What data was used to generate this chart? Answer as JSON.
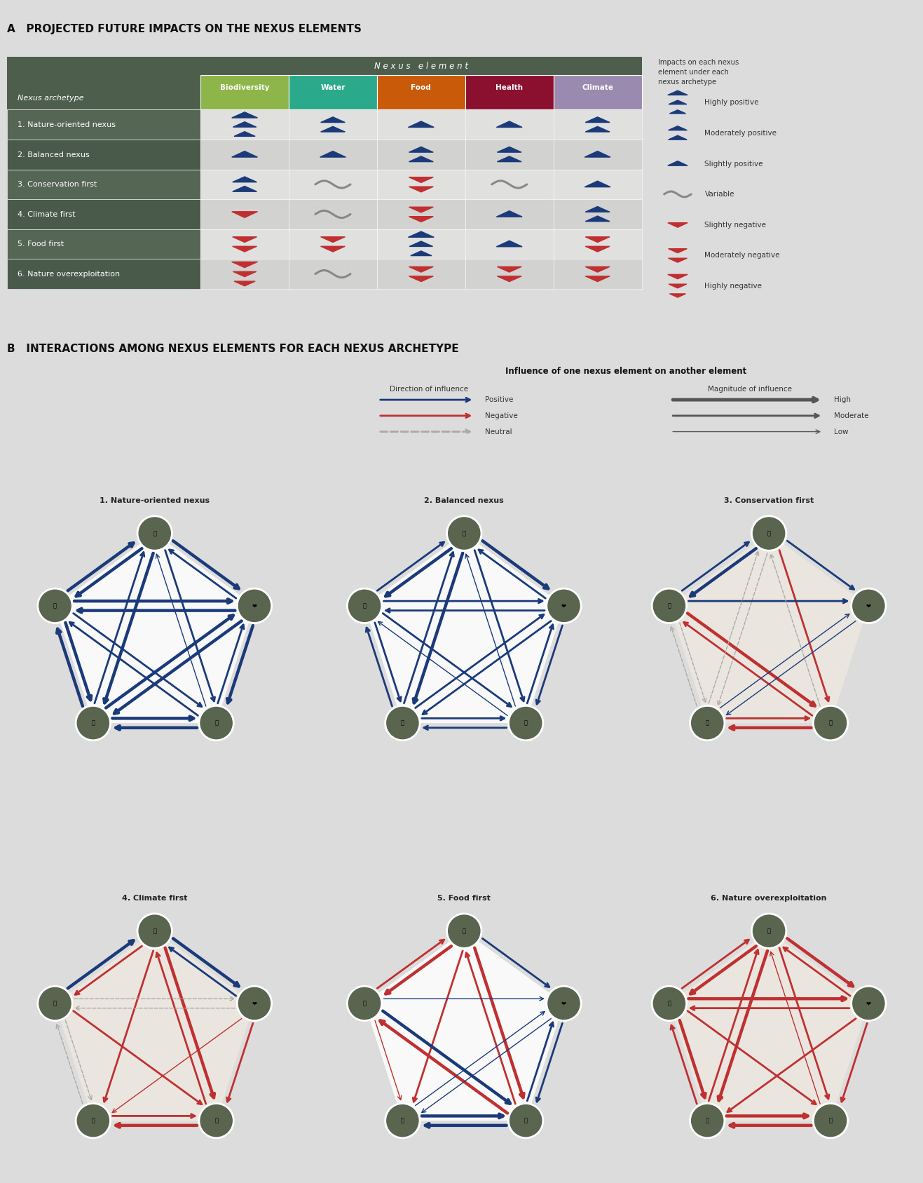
{
  "title_A": "A   PROJECTED FUTURE IMPACTS ON THE NEXUS ELEMENTS",
  "title_B": "B   INTERACTIONS AMONG NEXUS ELEMENTS FOR EACH NEXUS ARCHETYPE",
  "bg_color": "#dcdcdc",
  "header_dark": "#4d5e4d",
  "bio_color": "#8db54a",
  "water_color": "#2aaa8a",
  "food_color": "#c85a0a",
  "health_color": "#8b1030",
  "climate_color": "#9a8ab0",
  "archetypes": [
    "1. Nature-oriented nexus",
    "2. Balanced nexus",
    "3. Conservation first",
    "4. Climate first",
    "5. Food first",
    "6. Nature overexploitation"
  ],
  "nexus_elements": [
    "Biodiversity",
    "Water",
    "Food",
    "Health",
    "Climate"
  ],
  "impact_data": [
    [
      "hp",
      "mp",
      "sp",
      "sp",
      "mp"
    ],
    [
      "sp",
      "sp",
      "mp",
      "mp",
      "sp"
    ],
    [
      "mp",
      "var",
      "mn",
      "var",
      "sp"
    ],
    [
      "sn",
      "var",
      "mn",
      "sp",
      "mp"
    ],
    [
      "mn",
      "mn",
      "hp",
      "sp",
      "mn"
    ],
    [
      "hn",
      "var",
      "mn",
      "mn",
      "mn"
    ]
  ],
  "pos_color": "#1a3a7a",
  "neg_color": "#c03030",
  "var_color": "#888888",
  "node_color": "#5a6550",
  "node_edge_color": "#ffffff",
  "graph_bg_white": "#f5f5f0",
  "graph_bg_shaded": "#e0ddd8"
}
